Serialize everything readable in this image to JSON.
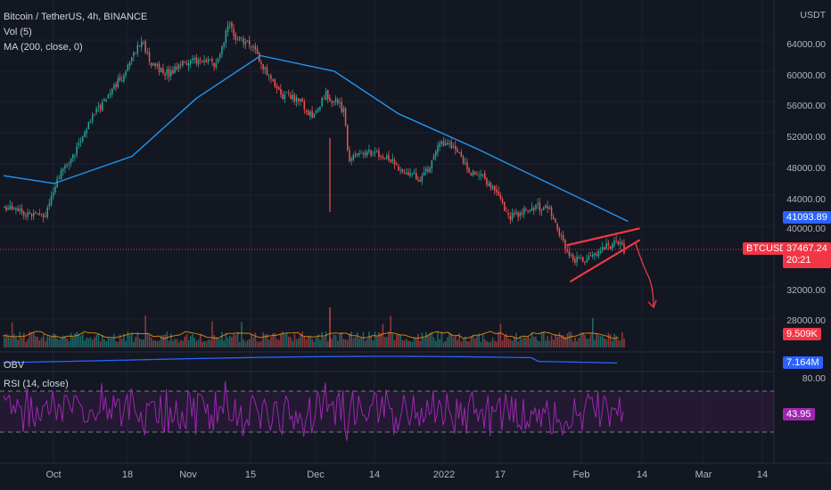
{
  "header": {
    "title": "Bitcoin / TetherUS, 4h, BINANCE",
    "indicator_vol": "Vol (5)",
    "indicator_ma": "MA (200, close, 0)",
    "indicator_obv": "OBV",
    "indicator_rsi": "RSI (14, close)"
  },
  "price_axis": {
    "currency_label": "USDT",
    "ticks": [
      "64000.00",
      "60000.00",
      "56000.00",
      "52000.00",
      "48000.00",
      "44000.00",
      "40000.00",
      "32000.00",
      "28000.00"
    ]
  },
  "tags": {
    "ma_value": "41093.89",
    "symbol": "BTCUSDT",
    "last_price": "37467.24",
    "countdown": "20:21",
    "volume_value": "9.509K",
    "obv_value": "7.164M",
    "rsi_upper": "80.00",
    "rsi_value": "43.95"
  },
  "time_axis": [
    "Oct",
    "18",
    "Nov",
    "15",
    "Dec",
    "14",
    "2022",
    "17",
    "Feb",
    "14",
    "Mar",
    "14"
  ],
  "colors": {
    "background": "#131722",
    "up": "#26a69a",
    "down": "#ef5350",
    "ma": "#2196f3",
    "rsi": "#9c27b0",
    "wedge": "#f23645",
    "ma_tag": "#2962ff",
    "price_tag": "#f23645"
  },
  "chart_data": {
    "type": "line",
    "title": "Bitcoin / TetherUS, 4h, BINANCE",
    "price_range": [
      25000,
      67000
    ],
    "price_close": [
      {
        "x": "Sep 20",
        "y": 43000
      },
      {
        "x": "Sep 22",
        "y": 42500
      },
      {
        "x": "Sep 25",
        "y": 42000
      },
      {
        "x": "Sep 29",
        "y": 41500
      },
      {
        "x": "Oct 1",
        "y": 46000
      },
      {
        "x": "Oct 5",
        "y": 49500
      },
      {
        "x": "Oct 9",
        "y": 54500
      },
      {
        "x": "Oct 13",
        "y": 57500
      },
      {
        "x": "Oct 17",
        "y": 61000
      },
      {
        "x": "Oct 20",
        "y": 64500
      },
      {
        "x": "Oct 22",
        "y": 61500
      },
      {
        "x": "Oct 26",
        "y": 60000
      },
      {
        "x": "Oct 29",
        "y": 61500
      },
      {
        "x": "Nov 2",
        "y": 62000
      },
      {
        "x": "Nov 5",
        "y": 61500
      },
      {
        "x": "Nov 8",
        "y": 66500
      },
      {
        "x": "Nov 10",
        "y": 64500
      },
      {
        "x": "Nov 13",
        "y": 64000
      },
      {
        "x": "Nov 16",
        "y": 60500
      },
      {
        "x": "Nov 19",
        "y": 57500
      },
      {
        "x": "Nov 23",
        "y": 57000
      },
      {
        "x": "Nov 26",
        "y": 54500
      },
      {
        "x": "Nov 29",
        "y": 57500
      },
      {
        "x": "Dec 3",
        "y": 55500
      },
      {
        "x": "Dec 4",
        "y": 49000
      },
      {
        "x": "Dec 8",
        "y": 50000
      },
      {
        "x": "Dec 12",
        "y": 49500
      },
      {
        "x": "Dec 16",
        "y": 47500
      },
      {
        "x": "Dec 20",
        "y": 46500
      },
      {
        "x": "Dec 24",
        "y": 51000
      },
      {
        "x": "Dec 27",
        "y": 51000
      },
      {
        "x": "Dec 30",
        "y": 47500
      },
      {
        "x": "Jan 2",
        "y": 47000
      },
      {
        "x": "Jan 5",
        "y": 45000
      },
      {
        "x": "Jan 8",
        "y": 41500
      },
      {
        "x": "Jan 11",
        "y": 42500
      },
      {
        "x": "Jan 14",
        "y": 43000
      },
      {
        "x": "Jan 17",
        "y": 42500
      },
      {
        "x": "Jan 21",
        "y": 36500
      },
      {
        "x": "Jan 24",
        "y": 36000
      },
      {
        "x": "Jan 28",
        "y": 37500
      },
      {
        "x": "Feb 1",
        "y": 38500
      },
      {
        "x": "Feb 2",
        "y": 37467
      }
    ],
    "ma200": [
      {
        "x": "Sep 20",
        "y": 47000
      },
      {
        "x": "Oct 1",
        "y": 46000
      },
      {
        "x": "Oct 18",
        "y": 49500
      },
      {
        "x": "Nov 1",
        "y": 57000
      },
      {
        "x": "Nov 15",
        "y": 62500
      },
      {
        "x": "Dec 1",
        "y": 60500
      },
      {
        "x": "Dec 15",
        "y": 55000
      },
      {
        "x": "Jan 1",
        "y": 50500
      },
      {
        "x": "Jan 15",
        "y": 46500
      },
      {
        "x": "Feb 3",
        "y": 41094
      }
    ],
    "wedge_upper": [
      {
        "x": "Jan 21",
        "y": 38000
      },
      {
        "x": "Feb 4",
        "y": 40200
      }
    ],
    "wedge_lower": [
      {
        "x": "Jan 21",
        "y": 33300
      },
      {
        "x": "Feb 4",
        "y": 38700
      }
    ],
    "forecast_arrow": [
      {
        "x": "Feb 3",
        "y": 38400
      },
      {
        "x": "Feb 5",
        "y": 35500
      },
      {
        "x": "Feb 7",
        "y": 30000
      }
    ],
    "rsi_range": [
      0,
      100
    ],
    "rsi_bands": [
      30,
      70
    ],
    "rsi_last": 43.95
  }
}
